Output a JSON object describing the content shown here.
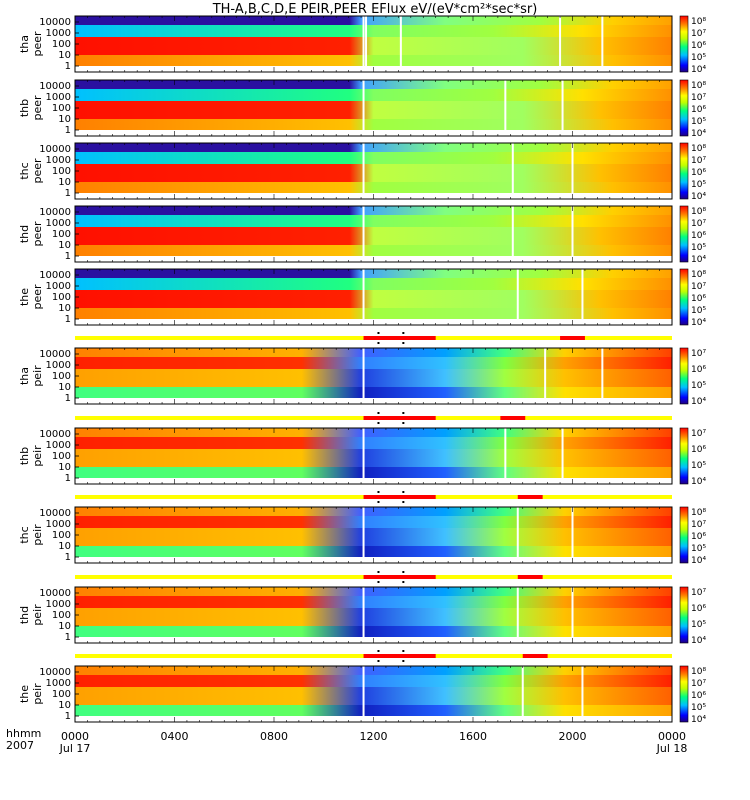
{
  "title": "TH-A,B,C,D,E PEIR,PEER EFlux eV/(eV*cm²*sec*sr)",
  "footer": {
    "row1": "hhmm",
    "row2": "2007"
  },
  "colors": {
    "mode_bar_yellow": "#ffff00",
    "mode_bar_red": "#ff0000",
    "gap_white": "#ffffff"
  },
  "chart_data": {
    "type": "heatmap",
    "colormap": "rainbow",
    "time_axis": {
      "ticks": [
        {
          "hour": 0,
          "label": "0000",
          "sublabel": "Jul 17"
        },
        {
          "hour": 4,
          "label": "0400",
          "sublabel": ""
        },
        {
          "hour": 8,
          "label": "0800",
          "sublabel": ""
        },
        {
          "hour": 12,
          "label": "1200",
          "sublabel": ""
        },
        {
          "hour": 16,
          "label": "1600",
          "sublabel": ""
        },
        {
          "hour": 20,
          "label": "2000",
          "sublabel": ""
        },
        {
          "hour": 24,
          "label": "0000",
          "sublabel": "Jul 18"
        }
      ],
      "range_hours": [
        0,
        24
      ]
    },
    "energy_ticks": [
      "10000",
      "1000",
      "100",
      "10",
      "1"
    ],
    "panels": [
      {
        "probe": "tha",
        "species": "peer",
        "cbar": [
          "10⁸",
          "10⁷",
          "10⁶",
          "10⁵",
          "10⁴"
        ],
        "mode_bar": null,
        "gaps": [
          11.6,
          11.7,
          13.1,
          19.5,
          21.2
        ]
      },
      {
        "probe": "thb",
        "species": "peer",
        "cbar": [
          "10⁸",
          "10⁷",
          "10⁶",
          "10⁵",
          "10⁴"
        ],
        "mode_bar": null,
        "gaps": [
          11.6,
          17.3,
          19.6
        ]
      },
      {
        "probe": "thc",
        "species": "peer",
        "cbar": [
          "10⁸",
          "10⁷",
          "10⁶",
          "10⁵",
          "10⁴"
        ],
        "mode_bar": null,
        "gaps": [
          11.6,
          17.6,
          20.0
        ]
      },
      {
        "probe": "thd",
        "species": "peer",
        "cbar": [
          "10⁸",
          "10⁷",
          "10⁶",
          "10⁵",
          "10⁴"
        ],
        "mode_bar": null,
        "gaps": [
          11.6,
          17.6,
          20.0
        ]
      },
      {
        "probe": "the",
        "species": "peer",
        "cbar": [
          "10⁸",
          "10⁷",
          "10⁶",
          "10⁵",
          "10⁴"
        ],
        "mode_bar": null,
        "gaps": [
          11.6,
          17.8,
          20.4
        ]
      },
      {
        "probe": "tha",
        "species": "peir",
        "cbar": [
          "10⁷",
          "10⁶",
          "10⁵",
          "10⁴"
        ],
        "mode_bar": {
          "red_spans": [
            [
              11.6,
              14.5
            ],
            [
              19.5,
              20.5
            ]
          ],
          "marks": [
            12.2,
            13.2
          ]
        },
        "gaps": [
          11.6,
          18.9,
          21.2
        ]
      },
      {
        "probe": "thb",
        "species": "peir",
        "cbar": [
          "10⁷",
          "10⁶",
          "10⁵",
          "10⁴"
        ],
        "mode_bar": {
          "red_spans": [
            [
              11.6,
              14.5
            ],
            [
              17.1,
              18.1
            ]
          ],
          "marks": [
            12.2,
            13.2
          ]
        },
        "gaps": [
          11.6,
          17.3,
          19.6
        ]
      },
      {
        "probe": "thc",
        "species": "peir",
        "cbar": [
          "10⁸",
          "10⁷",
          "10⁶",
          "10⁵",
          "10⁴"
        ],
        "mode_bar": {
          "red_spans": [
            [
              11.6,
              14.5
            ],
            [
              17.8,
              18.8
            ]
          ],
          "marks": [
            12.2,
            13.2
          ]
        },
        "gaps": [
          11.6,
          17.8,
          20.0
        ]
      },
      {
        "probe": "thd",
        "species": "peir",
        "cbar": [
          "10⁷",
          "10⁶",
          "10⁵",
          "10⁴"
        ],
        "mode_bar": {
          "red_spans": [
            [
              11.6,
              14.5
            ],
            [
              17.8,
              18.8
            ]
          ],
          "marks": [
            12.2,
            13.2
          ]
        },
        "gaps": [
          11.6,
          17.8,
          20.0
        ]
      },
      {
        "probe": "the",
        "species": "peir",
        "cbar": [
          "10⁸",
          "10⁷",
          "10⁶",
          "10⁵",
          "10⁴"
        ],
        "mode_bar": {
          "red_spans": [
            [
              11.6,
              14.5
            ],
            [
              18.0,
              19.0
            ]
          ],
          "marks": [
            12.2,
            13.2
          ]
        },
        "gaps": [
          11.6,
          18.0,
          20.4
        ]
      }
    ]
  }
}
